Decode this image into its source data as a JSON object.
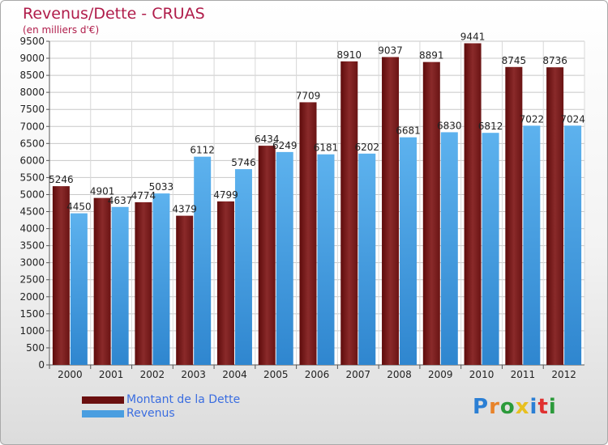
{
  "header": {
    "title": "Revenus/Dette - CRUAS",
    "subtitle": "(en milliers d'€)"
  },
  "colors": {
    "dette": "#7a1e1e",
    "revenus": "#4a9ee0",
    "title": "#b01c4a",
    "legend_text": "#3a6de0"
  },
  "legend": {
    "items": [
      {
        "label": "Montant de la Dette",
        "color": "#6a0f0f"
      },
      {
        "label": "Revenus",
        "color": "#4a9ee0"
      }
    ]
  },
  "logo": {
    "text": "Proxiti",
    "letter_colors": [
      "#2b7fd4",
      "#e8832a",
      "#2b9a3a",
      "#e8c020",
      "#2b7fd4",
      "#e03030",
      "#2b9a3a"
    ]
  },
  "chart_data": {
    "type": "bar",
    "categories": [
      "2000",
      "2001",
      "2002",
      "2003",
      "2004",
      "2005",
      "2006",
      "2007",
      "2008",
      "2009",
      "2010",
      "2011",
      "2012"
    ],
    "series": [
      {
        "name": "Montant de la Dette",
        "values": [
          5246,
          4901,
          4774,
          4379,
          4799,
          6434,
          7709,
          8910,
          9037,
          8891,
          9441,
          8745,
          8736
        ]
      },
      {
        "name": "Revenus",
        "values": [
          4450,
          4637,
          5033,
          6112,
          5746,
          6249,
          6181,
          6202,
          6681,
          6830,
          6812,
          7022,
          7024
        ]
      }
    ],
    "ylim": [
      0,
      9500
    ],
    "ytick_step": 500,
    "grid": true,
    "legend_position": "bottom-left"
  }
}
